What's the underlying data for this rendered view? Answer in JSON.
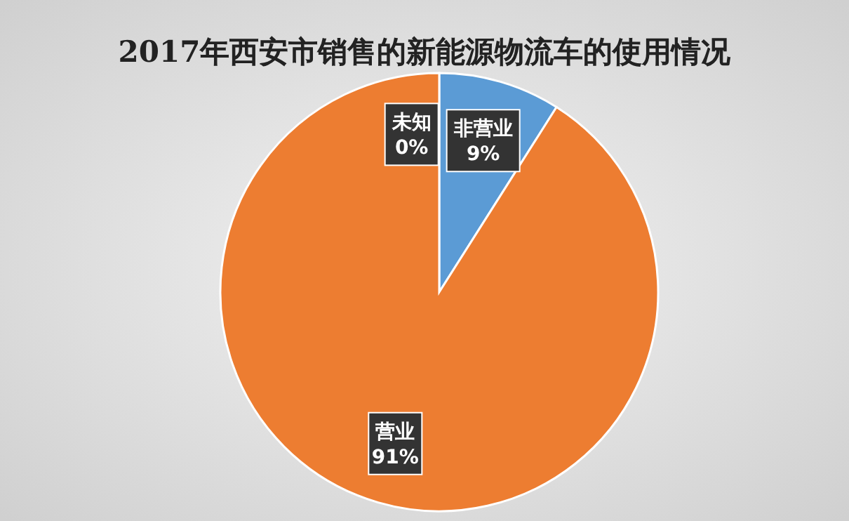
{
  "chart_data": {
    "type": "pie",
    "title": "2017年西安市销售的新能源物流车的使用情况",
    "categories": [
      "非营业",
      "营业",
      "未知"
    ],
    "values": [
      9,
      91,
      0
    ],
    "value_labels": [
      "9%",
      "91%",
      "0%"
    ],
    "colors": [
      "#5b9bd5",
      "#ed7d31",
      "#a5a5a5"
    ]
  }
}
